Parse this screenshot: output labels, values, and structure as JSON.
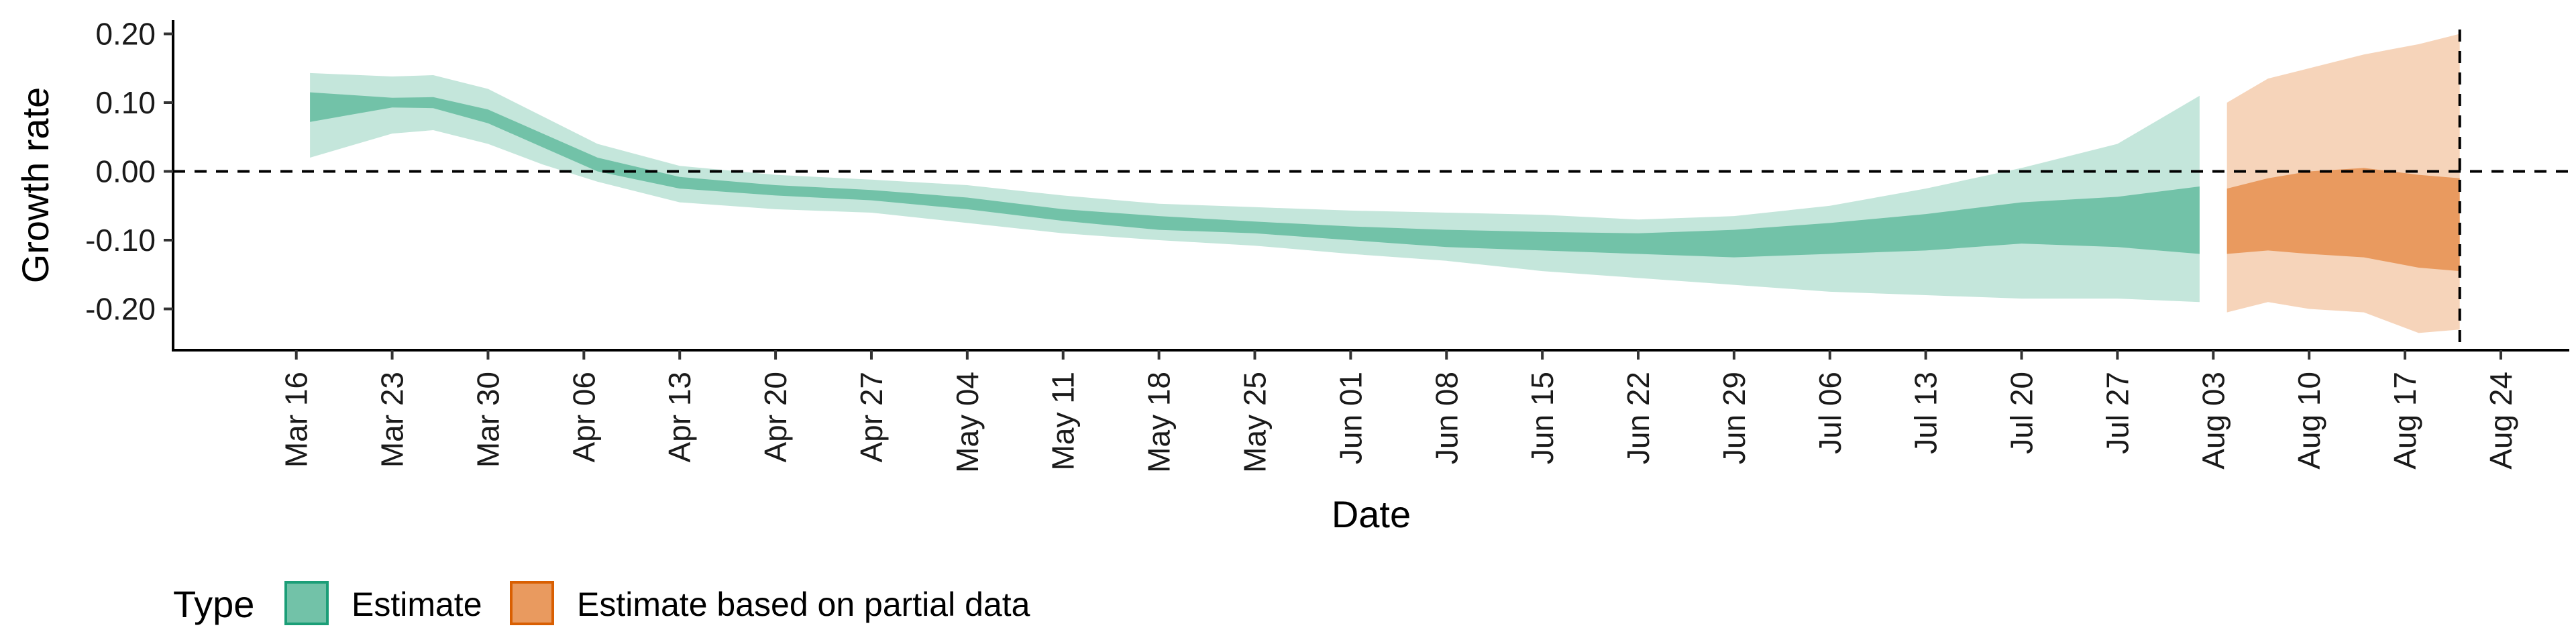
{
  "chart_data": {
    "type": "area",
    "xlabel": "Date",
    "ylabel": "Growth rate",
    "ylim": [
      -0.26,
      0.22
    ],
    "xlim": [
      "2020-03-07",
      "2020-08-29"
    ],
    "y_ticks": [
      0.2,
      0.1,
      0.0,
      -0.1,
      -0.2
    ],
    "y_tick_labels": [
      "0.20",
      "0.10",
      "0.00",
      "-0.10",
      "-0.20"
    ],
    "x_ticks": [
      "2020-03-16",
      "2020-03-23",
      "2020-03-30",
      "2020-04-06",
      "2020-04-13",
      "2020-04-20",
      "2020-04-27",
      "2020-05-04",
      "2020-05-11",
      "2020-05-18",
      "2020-05-25",
      "2020-06-01",
      "2020-06-08",
      "2020-06-15",
      "2020-06-22",
      "2020-06-29",
      "2020-07-06",
      "2020-07-13",
      "2020-07-20",
      "2020-07-27",
      "2020-08-03",
      "2020-08-10",
      "2020-08-17",
      "2020-08-24"
    ],
    "x_tick_labels": [
      "Mar 16",
      "Mar 23",
      "Mar 30",
      "Apr 06",
      "Apr 13",
      "Apr 20",
      "Apr 27",
      "May 04",
      "May 11",
      "May 18",
      "May 25",
      "Jun 01",
      "Jun 08",
      "Jun 15",
      "Jun 22",
      "Jun 29",
      "Jul 06",
      "Jul 13",
      "Jul 20",
      "Jul 27",
      "Aug 03",
      "Aug 10",
      "Aug 17",
      "Aug 24"
    ],
    "hline": 0.0,
    "vline": "2020-08-21",
    "grid": false,
    "legend": {
      "title": "Type",
      "position": "bottom-left",
      "items": [
        {
          "label": "Estimate",
          "fill": "#72c2a8",
          "border": "#1b9e77"
        },
        {
          "label": "Estimate based on partial data",
          "fill": "#e99a5f",
          "border": "#d95f02"
        }
      ]
    },
    "series": [
      {
        "name": "Estimate",
        "color_inner": "#72c2a8",
        "color_outer": "#c4e6db",
        "points": [
          {
            "x": "2020-03-17",
            "lo90": 0.02,
            "lo50": 0.072,
            "hi50": 0.115,
            "hi90": 0.143
          },
          {
            "x": "2020-03-23",
            "lo90": 0.055,
            "lo50": 0.093,
            "hi50": 0.107,
            "hi90": 0.138
          },
          {
            "x": "2020-03-26",
            "lo90": 0.06,
            "lo50": 0.092,
            "hi50": 0.108,
            "hi90": 0.14
          },
          {
            "x": "2020-03-30",
            "lo90": 0.04,
            "lo50": 0.07,
            "hi50": 0.09,
            "hi90": 0.12
          },
          {
            "x": "2020-04-03",
            "lo90": 0.01,
            "lo50": 0.035,
            "hi50": 0.055,
            "hi90": 0.08
          },
          {
            "x": "2020-04-07",
            "lo90": -0.015,
            "lo50": 0.0,
            "hi50": 0.02,
            "hi90": 0.04
          },
          {
            "x": "2020-04-13",
            "lo90": -0.045,
            "lo50": -0.025,
            "hi50": -0.008,
            "hi90": 0.008
          },
          {
            "x": "2020-04-20",
            "lo90": -0.055,
            "lo50": -0.035,
            "hi50": -0.02,
            "hi90": -0.005
          },
          {
            "x": "2020-04-27",
            "lo90": -0.06,
            "lo50": -0.042,
            "hi50": -0.027,
            "hi90": -0.012
          },
          {
            "x": "2020-05-04",
            "lo90": -0.075,
            "lo50": -0.055,
            "hi50": -0.038,
            "hi90": -0.02
          },
          {
            "x": "2020-05-11",
            "lo90": -0.09,
            "lo50": -0.072,
            "hi50": -0.055,
            "hi90": -0.035
          },
          {
            "x": "2020-05-18",
            "lo90": -0.1,
            "lo50": -0.085,
            "hi50": -0.065,
            "hi90": -0.047
          },
          {
            "x": "2020-05-25",
            "lo90": -0.108,
            "lo50": -0.09,
            "hi50": -0.073,
            "hi90": -0.052
          },
          {
            "x": "2020-06-01",
            "lo90": -0.12,
            "lo50": -0.1,
            "hi50": -0.08,
            "hi90": -0.057
          },
          {
            "x": "2020-06-08",
            "lo90": -0.13,
            "lo50": -0.11,
            "hi50": -0.085,
            "hi90": -0.06
          },
          {
            "x": "2020-06-15",
            "lo90": -0.145,
            "lo50": -0.115,
            "hi50": -0.088,
            "hi90": -0.063
          },
          {
            "x": "2020-06-22",
            "lo90": -0.155,
            "lo50": -0.12,
            "hi50": -0.09,
            "hi90": -0.07
          },
          {
            "x": "2020-06-29",
            "lo90": -0.165,
            "lo50": -0.125,
            "hi50": -0.085,
            "hi90": -0.065
          },
          {
            "x": "2020-07-06",
            "lo90": -0.175,
            "lo50": -0.12,
            "hi50": -0.075,
            "hi90": -0.05
          },
          {
            "x": "2020-07-13",
            "lo90": -0.18,
            "lo50": -0.115,
            "hi50": -0.062,
            "hi90": -0.025
          },
          {
            "x": "2020-07-20",
            "lo90": -0.185,
            "lo50": -0.105,
            "hi50": -0.045,
            "hi90": 0.005
          },
          {
            "x": "2020-07-27",
            "lo90": -0.185,
            "lo50": -0.11,
            "hi50": -0.037,
            "hi90": 0.04
          },
          {
            "x": "2020-08-02",
            "lo90": -0.19,
            "lo50": -0.12,
            "hi50": -0.022,
            "hi90": 0.11
          }
        ]
      },
      {
        "name": "Estimate based on partial data",
        "color_inner": "#e99a5f",
        "color_outer": "#f6d4ba",
        "points": [
          {
            "x": "2020-08-04",
            "lo90": -0.205,
            "lo50": -0.12,
            "hi50": -0.025,
            "hi90": 0.1
          },
          {
            "x": "2020-08-07",
            "lo90": -0.19,
            "lo50": -0.115,
            "hi50": -0.01,
            "hi90": 0.135
          },
          {
            "x": "2020-08-10",
            "lo90": -0.2,
            "lo50": -0.12,
            "hi50": 0.0,
            "hi90": 0.15
          },
          {
            "x": "2020-08-14",
            "lo90": -0.205,
            "lo50": -0.125,
            "hi50": 0.005,
            "hi90": 0.17
          },
          {
            "x": "2020-08-18",
            "lo90": -0.235,
            "lo50": -0.14,
            "hi50": -0.005,
            "hi90": 0.185
          },
          {
            "x": "2020-08-21",
            "lo90": -0.23,
            "lo50": -0.145,
            "hi50": -0.01,
            "hi90": 0.2
          }
        ]
      }
    ]
  }
}
